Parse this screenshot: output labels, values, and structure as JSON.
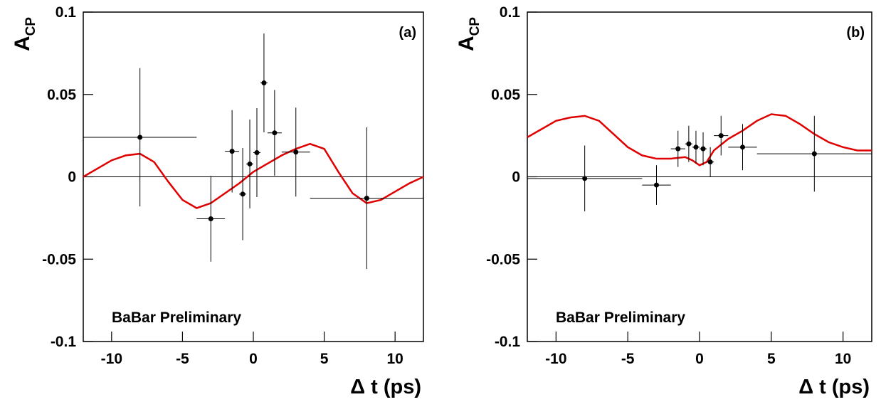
{
  "chart_data": [
    {
      "type": "errorbar",
      "title": "(a)",
      "y_label": "A",
      "y_label_sub": "CP",
      "x_label": "Δ t (ps)",
      "annotation": "BaBar Preliminary",
      "xlim": [
        -12,
        12
      ],
      "xticks": [
        -10,
        -5,
        0,
        5,
        10
      ],
      "ylim": [
        -0.1,
        0.1
      ],
      "yticks": [
        -0.1,
        -0.05,
        0,
        0.05,
        0.1
      ],
      "x": [
        -8,
        -3,
        -1.5,
        -0.75,
        -0.25,
        0.25,
        0.75,
        1.5,
        3,
        8
      ],
      "x_low": [
        -12,
        -4,
        -2,
        -1,
        -0.5,
        0,
        0.5,
        1,
        2,
        4
      ],
      "x_high": [
        -4,
        -2,
        -1,
        -0.5,
        0,
        0.5,
        1,
        2,
        4,
        12
      ],
      "values": [
        0.024,
        -0.0255,
        0.0155,
        -0.0105,
        0.0078,
        0.0147,
        0.057,
        0.0267,
        0.015,
        -0.013
      ],
      "errors": [
        0.042,
        0.026,
        0.025,
        0.028,
        0.027,
        0.027,
        0.03,
        0.026,
        0.027,
        0.043
      ],
      "color": "#000000",
      "fit": {
        "color": "#e00000",
        "x": [
          -12,
          -11,
          -10,
          -9,
          -8,
          -7,
          -6,
          -5,
          -4,
          -3,
          -2,
          -1,
          0,
          1,
          2,
          3,
          4,
          5,
          6,
          7,
          8,
          9,
          10,
          11,
          12
        ],
        "values": [
          0,
          0.005,
          0.01,
          0.013,
          0.014,
          0.009,
          -0.003,
          -0.014,
          -0.019,
          -0.016,
          -0.01,
          -0.004,
          0.003,
          0.008,
          0.013,
          0.017,
          0.02,
          0.017,
          0.003,
          -0.01,
          -0.016,
          -0.014,
          -0.009,
          -0.004,
          0
        ]
      }
    },
    {
      "type": "errorbar",
      "title": "(b)",
      "y_label": "A",
      "y_label_sub": "CP",
      "x_label": "Δ t (ps)",
      "annotation": "BaBar Preliminary",
      "xlim": [
        -12,
        12
      ],
      "xticks": [
        -10,
        -5,
        0,
        5,
        10
      ],
      "ylim": [
        -0.1,
        0.1
      ],
      "yticks": [
        -0.1,
        -0.05,
        0,
        0.05,
        0.1
      ],
      "x": [
        -8,
        -3,
        -1.5,
        -0.75,
        -0.25,
        0.25,
        0.75,
        1.5,
        3,
        8
      ],
      "x_low": [
        -12,
        -4,
        -2,
        -1,
        -0.5,
        0,
        0.5,
        1,
        2,
        4
      ],
      "x_high": [
        -4,
        -2,
        -1,
        -0.5,
        0,
        0.5,
        1,
        2,
        4,
        12
      ],
      "values": [
        -0.001,
        -0.005,
        0.017,
        0.02,
        0.018,
        0.017,
        0.009,
        0.025,
        0.018,
        0.014
      ],
      "errors": [
        0.02,
        0.012,
        0.011,
        0.011,
        0.01,
        0.01,
        0.009,
        0.012,
        0.014,
        0.023
      ],
      "color": "#000000",
      "fit": {
        "color": "#e00000",
        "x": [
          -12,
          -11,
          -10,
          -9,
          -8,
          -7,
          -6,
          -5,
          -4,
          -3,
          -2,
          -1,
          -0.5,
          0,
          0.5,
          1,
          2,
          3,
          4,
          5,
          6,
          7,
          8,
          9,
          10,
          11,
          12
        ],
        "values": [
          0.024,
          0.029,
          0.034,
          0.036,
          0.037,
          0.034,
          0.026,
          0.018,
          0.013,
          0.011,
          0.011,
          0.012,
          0.01,
          0.007,
          0.009,
          0.016,
          0.023,
          0.028,
          0.034,
          0.038,
          0.037,
          0.032,
          0.026,
          0.021,
          0.018,
          0.016,
          0.016
        ]
      }
    }
  ]
}
